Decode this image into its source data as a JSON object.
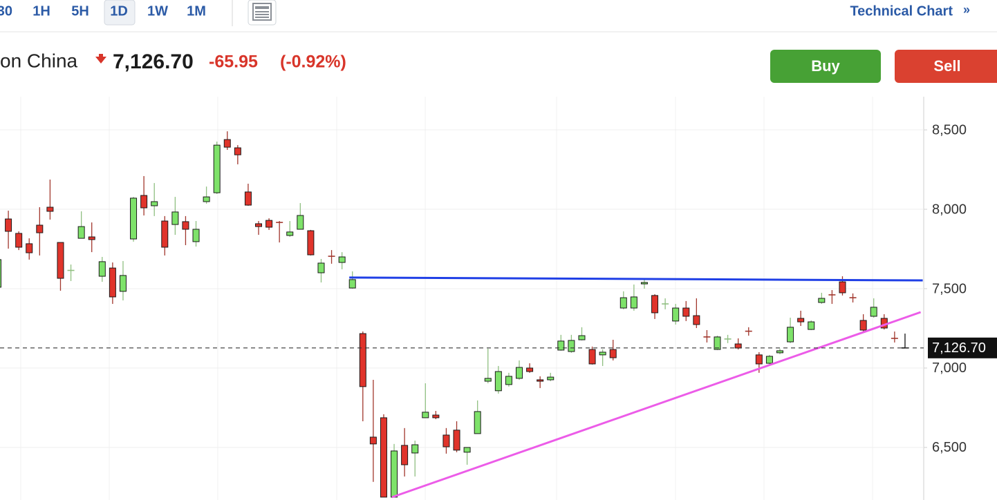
{
  "toolbar": {
    "timeframes": [
      "30",
      "1H",
      "5H",
      "1D",
      "1W",
      "1M"
    ],
    "active": "1D",
    "link": "Technical Chart",
    "link_icon": "»"
  },
  "header": {
    "name": "on China",
    "price": "7,126.70",
    "change": "-65.95",
    "change_pct": "(-0.92%)"
  },
  "buttons": {
    "buy": "Buy",
    "sell": "Sell"
  },
  "chart_data": {
    "type": "candlestick",
    "up_color": "#7ee26a",
    "down_color": "#e0342b",
    "ylim": [
      6169,
      8709
    ],
    "yticks": [
      {
        "value": 6500,
        "label": "6,500"
      },
      {
        "value": 7000,
        "label": "7,000"
      },
      {
        "value": 7500,
        "label": "7,500"
      },
      {
        "value": 8000,
        "label": "8,000"
      },
      {
        "value": 8500,
        "label": "8,500"
      }
    ],
    "grid": true,
    "last_price": {
      "value": 7126.7,
      "label": "7,126.70"
    },
    "candles": [
      [
        7509,
        7700,
        7500,
        7683
      ],
      [
        7939,
        7991,
        7752,
        7861
      ],
      [
        7848,
        7861,
        7743,
        7761
      ],
      [
        7783,
        7817,
        7683,
        7726
      ],
      [
        7900,
        8013,
        7709,
        7852
      ],
      [
        8013,
        8187,
        7935,
        7987
      ],
      [
        7791,
        7791,
        7487,
        7565
      ],
      [
        7611,
        7652,
        7548,
        7615
      ],
      [
        7817,
        7987,
        7817,
        7891
      ],
      [
        7826,
        7917,
        7730,
        7809
      ],
      [
        7578,
        7700,
        7543,
        7670
      ],
      [
        7630,
        7665,
        7404,
        7448
      ],
      [
        7483,
        7674,
        7426,
        7583
      ],
      [
        7813,
        8078,
        7796,
        8070
      ],
      [
        8087,
        8209,
        7961,
        8009
      ],
      [
        8022,
        8165,
        7957,
        8048
      ],
      [
        7926,
        7957,
        7709,
        7761
      ],
      [
        7904,
        8078,
        7839,
        7983
      ],
      [
        7922,
        7957,
        7774,
        7874
      ],
      [
        7796,
        7926,
        7765,
        7874
      ],
      [
        8048,
        8143,
        8035,
        8078
      ],
      [
        8104,
        8426,
        8096,
        8404
      ],
      [
        8439,
        8491,
        8374,
        8391
      ],
      [
        8387,
        8404,
        8283,
        8343
      ],
      [
        8109,
        8161,
        8022,
        8026
      ],
      [
        7909,
        7926,
        7839,
        7891
      ],
      [
        7930,
        7943,
        7870,
        7887
      ],
      [
        7917,
        7926,
        7791,
        7913
      ],
      [
        7835,
        7926,
        7826,
        7857
      ],
      [
        7874,
        8039,
        7874,
        7961
      ],
      [
        7865,
        7870,
        7709,
        7713
      ],
      [
        7600,
        7687,
        7539,
        7661
      ],
      [
        7704,
        7743,
        7657,
        7700
      ],
      [
        7665,
        7730,
        7622,
        7700
      ],
      [
        7504,
        7609,
        7500,
        7557
      ],
      [
        7217,
        7230,
        6665,
        6883
      ],
      [
        6565,
        6926,
        6283,
        6522
      ],
      [
        6687,
        6709,
        6187,
        6187
      ],
      [
        6187,
        6522,
        6187,
        6478
      ],
      [
        6513,
        6622,
        6317,
        6391
      ],
      [
        6465,
        6543,
        6317,
        6517
      ],
      [
        6687,
        6904,
        6687,
        6722
      ],
      [
        6704,
        6730,
        6678,
        6687
      ],
      [
        6578,
        6622,
        6461,
        6504
      ],
      [
        6609,
        6665,
        6470,
        6483
      ],
      [
        6470,
        6500,
        6391,
        6500
      ],
      [
        6587,
        6796,
        6587,
        6726
      ],
      [
        6917,
        7122,
        6904,
        6935
      ],
      [
        6857,
        7013,
        6839,
        6978
      ],
      [
        6896,
        6970,
        6883,
        6948
      ],
      [
        6935,
        7048,
        6926,
        7004
      ],
      [
        7000,
        7030,
        6970,
        6978
      ],
      [
        6926,
        6948,
        6874,
        6917
      ],
      [
        6926,
        6970,
        6917,
        6943
      ],
      [
        7113,
        7209,
        7109,
        7170
      ],
      [
        7104,
        7209,
        7096,
        7174
      ],
      [
        7178,
        7257,
        7174,
        7204
      ],
      [
        7117,
        7135,
        7022,
        7026
      ],
      [
        7083,
        7117,
        7013,
        7100
      ],
      [
        7117,
        7178,
        7048,
        7065
      ],
      [
        7378,
        7483,
        7370,
        7443
      ],
      [
        7378,
        7526,
        7361,
        7448
      ],
      [
        7530,
        7561,
        7500,
        7539
      ],
      [
        7457,
        7465,
        7309,
        7348
      ],
      [
        7400,
        7439,
        7370,
        7404
      ],
      [
        7296,
        7404,
        7274,
        7378
      ],
      [
        7378,
        7422,
        7296,
        7326
      ],
      [
        7330,
        7439,
        7252,
        7274
      ],
      [
        7196,
        7239,
        7161,
        7191
      ],
      [
        7117,
        7204,
        7113,
        7196
      ],
      [
        7178,
        7209,
        7157,
        7183
      ],
      [
        7152,
        7187,
        7117,
        7126
      ],
      [
        7232,
        7257,
        7204,
        7226
      ],
      [
        7083,
        7100,
        6970,
        7026
      ],
      [
        7030,
        7083,
        7022,
        7074
      ],
      [
        7096,
        7122,
        7087,
        7109
      ],
      [
        7165,
        7317,
        7157,
        7257
      ],
      [
        7313,
        7361,
        7265,
        7291
      ],
      [
        7243,
        7300,
        7239,
        7291
      ],
      [
        7413,
        7474,
        7404,
        7439
      ],
      [
        7461,
        7491,
        7404,
        7457
      ],
      [
        7543,
        7578,
        7457,
        7474
      ],
      [
        7443,
        7470,
        7413,
        7439
      ],
      [
        7300,
        7339,
        7230,
        7239
      ],
      [
        7326,
        7439,
        7317,
        7383
      ],
      [
        7313,
        7339,
        7243,
        7252
      ],
      [
        7187,
        7230,
        7161,
        7183
      ],
      [
        7126.7,
        7217,
        7126.7,
        7126.7
      ]
    ],
    "trendlines": [
      {
        "color": "#1f3fe6",
        "x": [
          33.7,
          88.7
        ],
        "y": [
          7570,
          7552
        ]
      },
      {
        "color": "#ec5ce8",
        "x": [
          37.8,
          88.5
        ],
        "y": [
          6187,
          7352
        ]
      }
    ]
  }
}
